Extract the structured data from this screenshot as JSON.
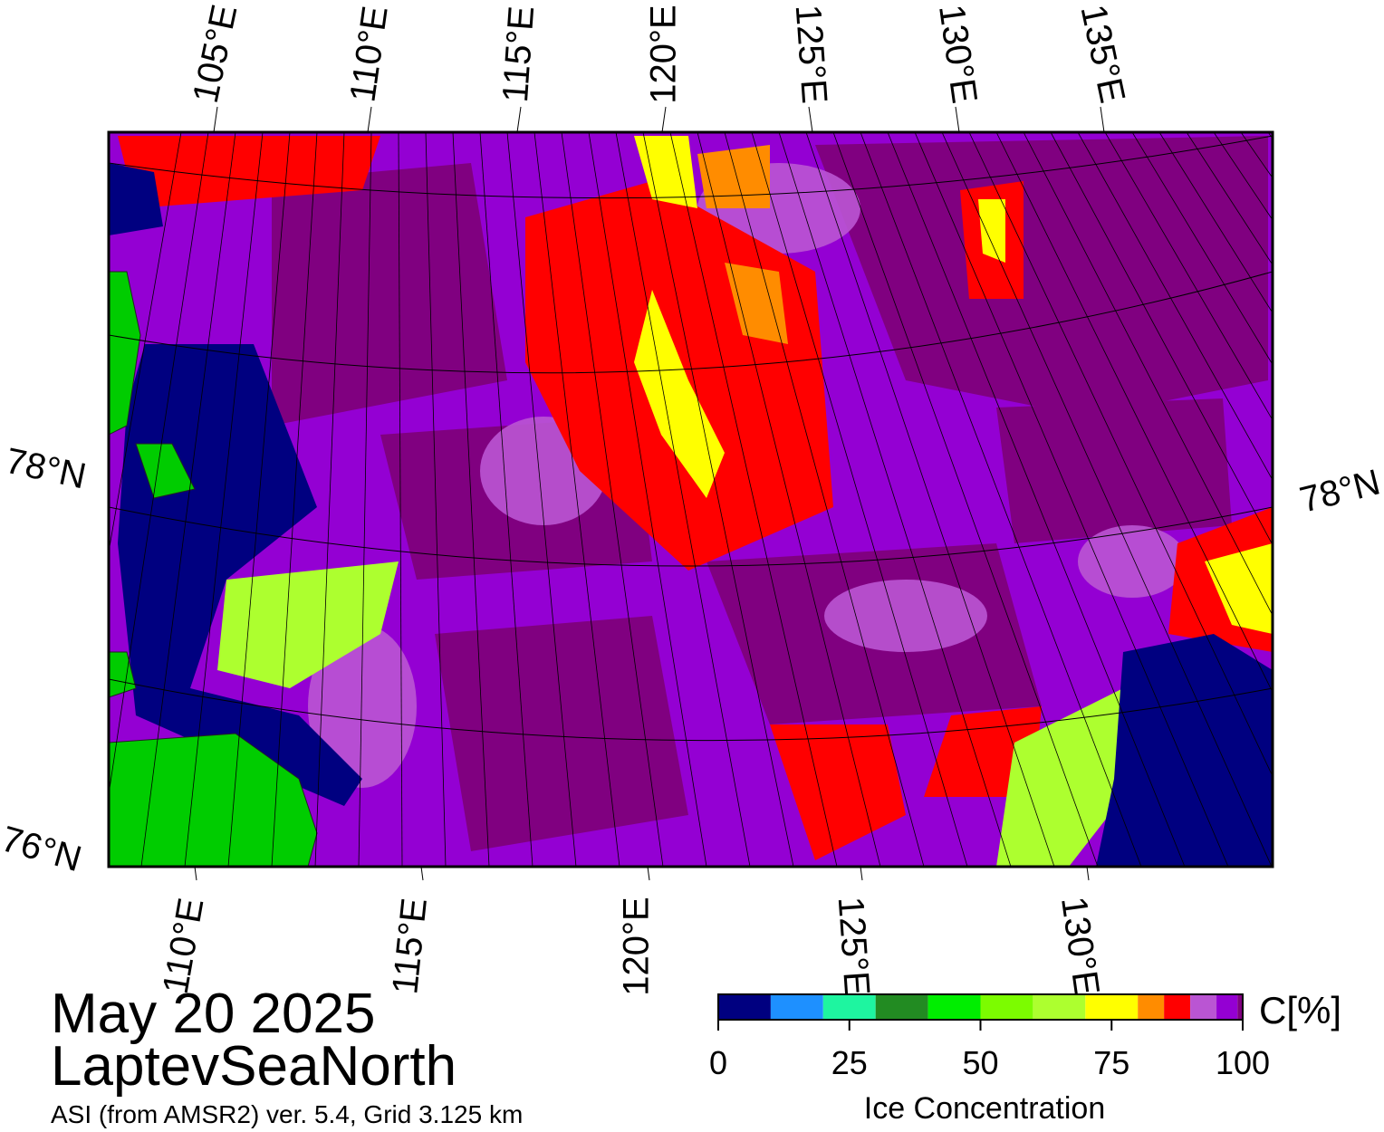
{
  "map": {
    "top_labels": [
      "105°E",
      "110°E",
      "115°E",
      "120°E",
      "125°E",
      "130°E",
      "135°E"
    ],
    "bottom_labels": [
      "110°E",
      "115°E",
      "120°E",
      "125°E",
      "130°E"
    ],
    "left_labels": [
      "78°N",
      "76°N"
    ],
    "right_labels": [
      "78°N"
    ]
  },
  "caption": {
    "date": "May 20 2025",
    "region": "LaptevSeaNorth",
    "subtitle": "ASI (from AMSR2) ver. 5.4,  Grid 3.125 km"
  },
  "colorbar": {
    "label": "C[%]",
    "title": "Ice Concentration",
    "bins": [
      0,
      10,
      20,
      30,
      40,
      50,
      60,
      70,
      80,
      85,
      90,
      95,
      99,
      100
    ],
    "colors": [
      "#000080",
      "#1e90ff",
      "#1ef5a0",
      "#228b22",
      "#00ee00",
      "#7cfc00",
      "#adff2f",
      "#ffff00",
      "#ff8c00",
      "#ff0000",
      "#ba55d3",
      "#9400d3",
      "#800080"
    ],
    "ticks": [
      0,
      25,
      50,
      75,
      100
    ]
  }
}
